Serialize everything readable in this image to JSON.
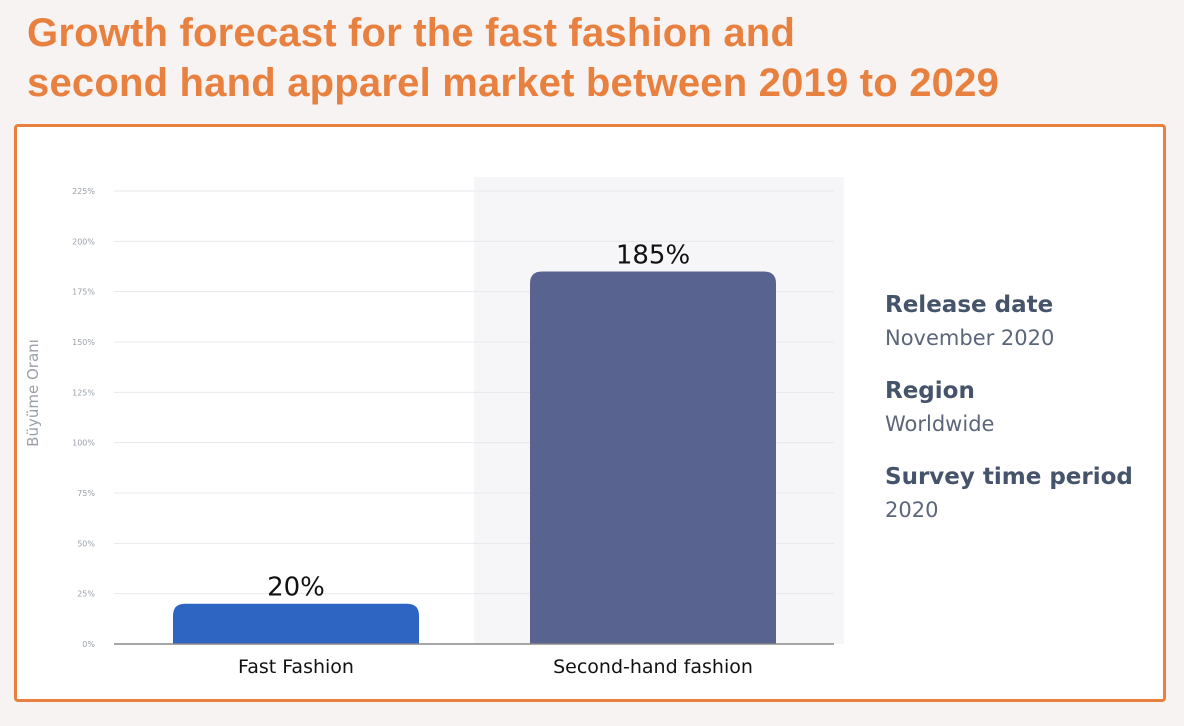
{
  "title_lines": [
    "Growth forecast for the fast fashion and",
    "second hand apparel market between 2019 to 2029"
  ],
  "info": [
    {
      "label": "Release date",
      "value": "November 2020"
    },
    {
      "label": "Region",
      "value": "Worldwide"
    },
    {
      "label": "Survey time period",
      "value": "2020"
    }
  ],
  "colors": {
    "accent": "#e8803f",
    "bar_fast_fashion": "#2f65c2",
    "bar_second_hand": "#59638f",
    "info_label": "#45546a"
  },
  "chart_data": {
    "type": "bar",
    "title": "Growth forecast for the fast fashion and second hand apparel market between 2019 to 2029",
    "categories": [
      "Fast Fashion",
      "Second-hand fashion"
    ],
    "values": [
      20,
      185
    ],
    "value_labels": [
      "20%",
      "185%"
    ],
    "ylabel": "Büyüme Oranı",
    "ylim": [
      0,
      225
    ],
    "yticks": [
      0,
      25,
      50,
      75,
      100,
      125,
      150,
      175,
      200,
      225
    ],
    "ytick_labels": [
      "0%",
      "25%",
      "50%",
      "75%",
      "100%",
      "125%",
      "150%",
      "175%",
      "200%",
      "225%"
    ],
    "grid": true,
    "legend": "none"
  }
}
